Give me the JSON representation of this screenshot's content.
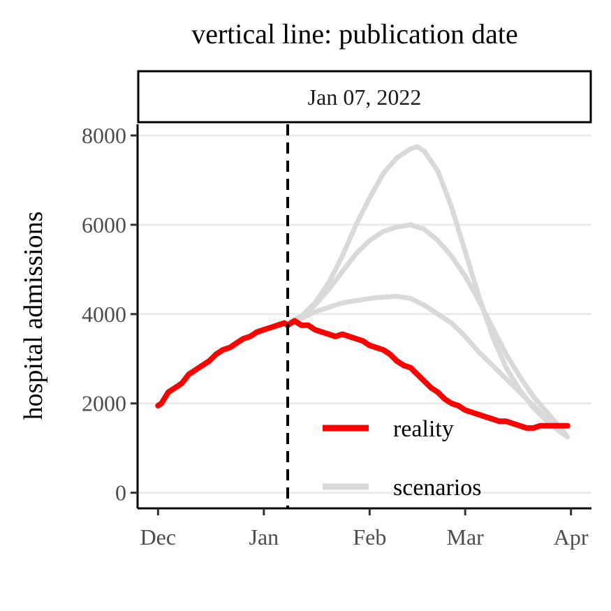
{
  "chart_data": {
    "type": "line",
    "title": "vertical line: publication date",
    "facet_label": "Jan 07, 2022",
    "xlabel": "",
    "ylabel": "hospital admissions",
    "x_ticks": [
      "Dec",
      "Jan",
      "Feb",
      "Mar",
      "Apr"
    ],
    "x_tick_dates": [
      "2021-12-01",
      "2022-01-01",
      "2022-02-01",
      "2022-03-01",
      "2022-04-01"
    ],
    "xlim": [
      "2021-11-25",
      "2022-04-07"
    ],
    "y_ticks": [
      0,
      2000,
      4000,
      6000,
      8000
    ],
    "ylim": [
      -350,
      8250
    ],
    "grid": "horizontal",
    "legend_position": "inside-bottom-right",
    "publication_date": "2022-01-08",
    "colors": {
      "reality": "#ff0000",
      "scenarios": "#d9d9d9",
      "vline": "#000000"
    },
    "series": [
      {
        "name": "reality",
        "x": [
          "2021-12-01",
          "2021-12-02",
          "2021-12-04",
          "2021-12-06",
          "2021-12-08",
          "2021-12-10",
          "2021-12-12",
          "2021-12-14",
          "2021-12-16",
          "2021-12-18",
          "2021-12-20",
          "2021-12-22",
          "2021-12-24",
          "2021-12-26",
          "2021-12-28",
          "2021-12-30",
          "2022-01-01",
          "2022-01-03",
          "2022-01-05",
          "2022-01-07",
          "2022-01-08",
          "2022-01-10",
          "2022-01-12",
          "2022-01-14",
          "2022-01-16",
          "2022-01-18",
          "2022-01-20",
          "2022-01-22",
          "2022-01-24",
          "2022-01-26",
          "2022-01-28",
          "2022-01-30",
          "2022-02-01",
          "2022-02-03",
          "2022-02-05",
          "2022-02-07",
          "2022-02-09",
          "2022-02-11",
          "2022-02-13",
          "2022-02-15",
          "2022-02-17",
          "2022-02-19",
          "2022-02-21",
          "2022-02-23",
          "2022-02-25",
          "2022-02-27",
          "2022-03-01",
          "2022-03-03",
          "2022-03-05",
          "2022-03-07",
          "2022-03-09",
          "2022-03-11",
          "2022-03-13",
          "2022-03-15",
          "2022-03-17",
          "2022-03-19",
          "2022-03-21",
          "2022-03-23",
          "2022-03-25",
          "2022-03-27",
          "2022-03-29",
          "2022-03-31"
        ],
        "y": [
          1950,
          2000,
          2250,
          2350,
          2450,
          2650,
          2750,
          2850,
          2950,
          3100,
          3200,
          3250,
          3350,
          3450,
          3500,
          3600,
          3650,
          3700,
          3750,
          3800,
          3750,
          3850,
          3750,
          3750,
          3650,
          3600,
          3550,
          3500,
          3550,
          3500,
          3450,
          3400,
          3300,
          3250,
          3200,
          3100,
          2950,
          2850,
          2800,
          2650,
          2500,
          2350,
          2250,
          2100,
          2000,
          1950,
          1850,
          1800,
          1750,
          1700,
          1650,
          1600,
          1600,
          1550,
          1500,
          1450,
          1450,
          1500,
          1500,
          1500,
          1500,
          1500
        ]
      },
      {
        "name": "scenarios",
        "group": "high",
        "x": [
          "2022-01-08",
          "2022-01-12",
          "2022-01-16",
          "2022-01-20",
          "2022-01-24",
          "2022-01-28",
          "2022-02-01",
          "2022-02-05",
          "2022-02-09",
          "2022-02-13",
          "2022-02-15",
          "2022-02-17",
          "2022-02-21",
          "2022-02-25",
          "2022-03-01",
          "2022-03-05",
          "2022-03-09",
          "2022-03-13",
          "2022-03-17",
          "2022-03-21",
          "2022-03-25",
          "2022-03-29",
          "2022-03-31"
        ],
        "y": [
          3800,
          3950,
          4250,
          4700,
          5300,
          6000,
          6600,
          7150,
          7500,
          7700,
          7750,
          7650,
          7200,
          6400,
          5400,
          4400,
          3500,
          2800,
          2300,
          1900,
          1600,
          1350,
          1250
        ]
      },
      {
        "name": "scenarios",
        "group": "mid",
        "x": [
          "2022-01-08",
          "2022-01-12",
          "2022-01-16",
          "2022-01-20",
          "2022-01-24",
          "2022-01-28",
          "2022-02-01",
          "2022-02-05",
          "2022-02-09",
          "2022-02-13",
          "2022-02-15",
          "2022-02-17",
          "2022-02-21",
          "2022-02-25",
          "2022-03-01",
          "2022-03-05",
          "2022-03-09",
          "2022-03-13",
          "2022-03-17",
          "2022-03-21",
          "2022-03-25",
          "2022-03-29",
          "2022-03-31"
        ],
        "y": [
          3800,
          3950,
          4200,
          4550,
          4950,
          5350,
          5650,
          5850,
          5950,
          6000,
          5950,
          5900,
          5650,
          5300,
          4850,
          4300,
          3700,
          3100,
          2600,
          2150,
          1800,
          1450,
          1250
        ]
      },
      {
        "name": "scenarios",
        "group": "low",
        "x": [
          "2022-01-08",
          "2022-01-12",
          "2022-01-16",
          "2022-01-20",
          "2022-01-24",
          "2022-01-28",
          "2022-02-01",
          "2022-02-05",
          "2022-02-09",
          "2022-02-13",
          "2022-02-17",
          "2022-02-21",
          "2022-02-25",
          "2022-03-01",
          "2022-03-05",
          "2022-03-09",
          "2022-03-13",
          "2022-03-17",
          "2022-03-21",
          "2022-03-25",
          "2022-03-29",
          "2022-03-31"
        ],
        "y": [
          3800,
          3900,
          4050,
          4150,
          4250,
          4300,
          4350,
          4380,
          4400,
          4350,
          4200,
          4000,
          3800,
          3500,
          3150,
          2850,
          2550,
          2250,
          1950,
          1650,
          1400,
          1250
        ]
      }
    ]
  }
}
